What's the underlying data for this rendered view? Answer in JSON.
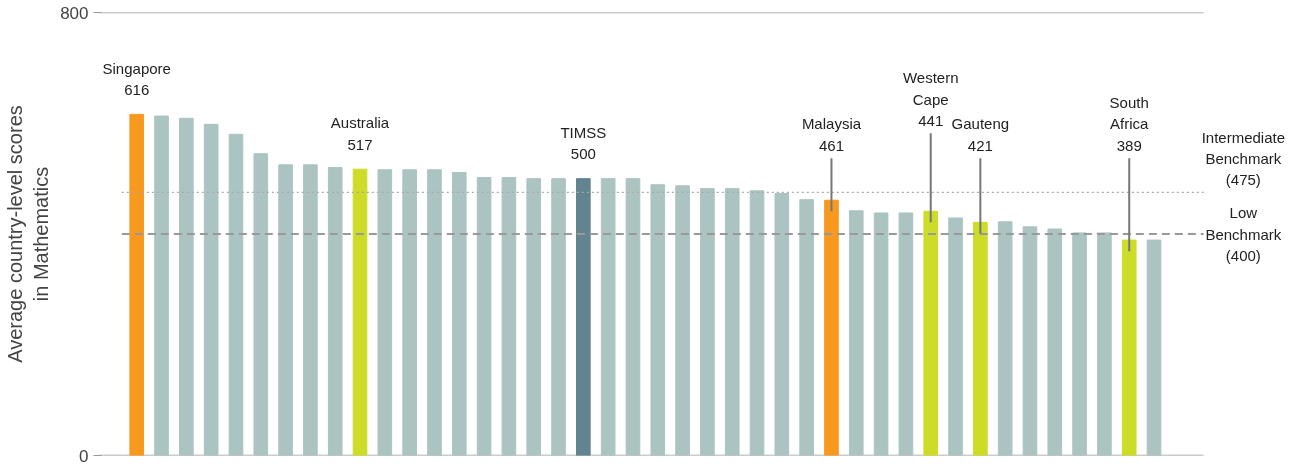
{
  "chart_data": {
    "type": "bar",
    "ylabel": "Average country-level scores\nin Mathematics",
    "categories": [
      "Singapore",
      null,
      null,
      null,
      null,
      null,
      null,
      null,
      null,
      "Australia",
      null,
      null,
      null,
      null,
      null,
      null,
      null,
      null,
      "TIMSS",
      null,
      null,
      null,
      null,
      null,
      null,
      null,
      null,
      null,
      "Malaysia",
      null,
      null,
      null,
      "Western\nCape",
      null,
      "Gauteng",
      null,
      null,
      null,
      null,
      null,
      "South\nAfrica",
      null
    ],
    "values": [
      616,
      613,
      609,
      598,
      580,
      545,
      525,
      525,
      520,
      517,
      516,
      516,
      516,
      511,
      502,
      502,
      500,
      500,
      500,
      500,
      500,
      489,
      487,
      482,
      482,
      478,
      473,
      462,
      461,
      442,
      438,
      438,
      441,
      429,
      421,
      422,
      413,
      409,
      402,
      402,
      389,
      389
    ],
    "value_labels": [
      "616",
      null,
      null,
      null,
      null,
      null,
      null,
      null,
      null,
      "517",
      null,
      null,
      null,
      null,
      null,
      null,
      null,
      null,
      "500",
      null,
      null,
      null,
      null,
      null,
      null,
      null,
      null,
      null,
      "461",
      null,
      null,
      null,
      "441",
      null,
      "421",
      null,
      null,
      null,
      null,
      null,
      "389",
      null
    ],
    "colors": [
      "#f7991f",
      "#abc4c1",
      "#abc4c1",
      "#abc4c1",
      "#abc4c1",
      "#abc4c1",
      "#abc4c1",
      "#abc4c1",
      "#abc4c1",
      "#cddc28",
      "#abc4c1",
      "#abc4c1",
      "#abc4c1",
      "#abc4c1",
      "#abc4c1",
      "#abc4c1",
      "#abc4c1",
      "#abc4c1",
      "#62848f",
      "#abc4c1",
      "#abc4c1",
      "#abc4c1",
      "#abc4c1",
      "#abc4c1",
      "#abc4c1",
      "#abc4c1",
      "#abc4c1",
      "#abc4c1",
      "#f7991f",
      "#abc4c1",
      "#abc4c1",
      "#abc4c1",
      "#cddc28",
      "#abc4c1",
      "#cddc28",
      "#abc4c1",
      "#abc4c1",
      "#abc4c1",
      "#abc4c1",
      "#abc4c1",
      "#cddc28",
      "#abc4c1"
    ],
    "ylim": [
      0,
      800
    ],
    "yticks": [
      0,
      800
    ],
    "grid": "y",
    "tick_labels": "y",
    "ref_lines": [
      {
        "axis": "y",
        "value": 475,
        "label": "Intermediate\nBenchmark\n(475)",
        "line_style": "dotted",
        "color": "#aaaaaa"
      },
      {
        "axis": "y",
        "value": 400,
        "label": "Low\nBenchmark\n(400)",
        "line_style": "dashed",
        "color": "#999999"
      }
    ]
  }
}
